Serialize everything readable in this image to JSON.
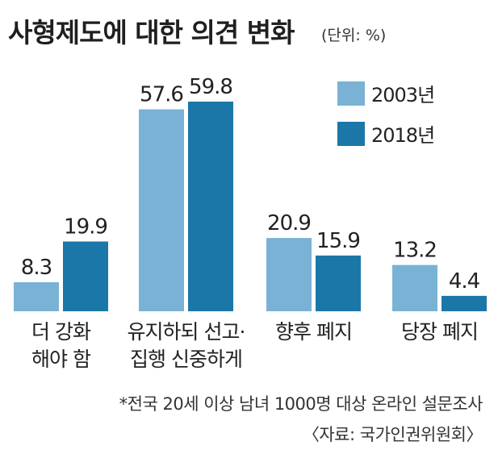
{
  "chart_data": {
    "type": "bar",
    "title": "사형제도에 대한 의견 변화",
    "unit": "(단위: %)",
    "categories": [
      [
        "더 강화",
        "해야 함"
      ],
      [
        "유지하되 선고·",
        "집행 신중하게"
      ],
      [
        "향후 폐지"
      ],
      [
        "당장 폐지"
      ]
    ],
    "series": [
      {
        "name": "2003년",
        "color": "#7ab2d6",
        "values": [
          8.3,
          57.6,
          20.9,
          13.2
        ]
      },
      {
        "name": "2018년",
        "color": "#1b77a8",
        "values": [
          19.9,
          59.8,
          15.9,
          4.4
        ]
      }
    ],
    "value_labels": [
      [
        "8.3",
        "57.6",
        "20.9",
        "13.2"
      ],
      [
        "19.9",
        "59.8",
        "15.9",
        "4.4"
      ]
    ],
    "ylim": [
      0,
      65
    ],
    "legend_position": "top-right",
    "grid": false,
    "notes": [
      "*전국 20세 이상 남녀 1000명 대상 온라인 설문조사",
      "〈자료: 국가인권위원회〉"
    ]
  }
}
